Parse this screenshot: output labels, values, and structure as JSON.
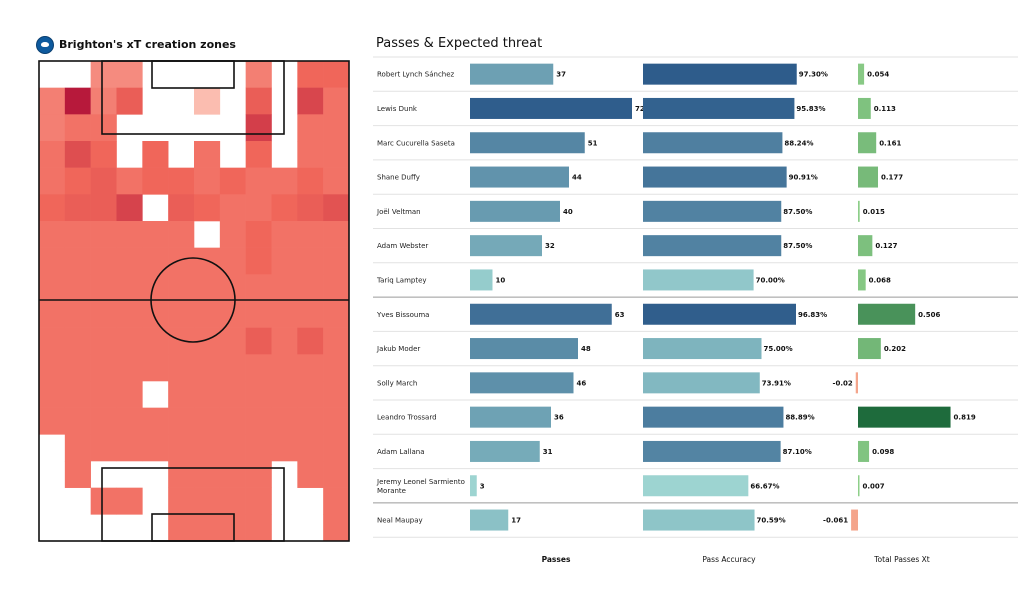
{
  "pitch_title": "Brighton's xT creation zones",
  "table_title": "Passes & Expected threat",
  "column_headers": {
    "passes": "Passes",
    "accuracy": "Pass Accuracy",
    "xt": "Total Passes Xt"
  },
  "colors": {
    "heat_max": "#b5163a",
    "heat_high": "#f0665a",
    "heat_low": "#fbbdb0",
    "pass_dark": "#2f5d8c",
    "pass_light": "#9fd7d3",
    "xt_dark": "#1e6b3c",
    "xt_light": "#8fd08a",
    "xt_negative": "#f4a58c"
  },
  "chart_data": [
    {
      "type": "heatmap",
      "title": "Brighton's xT creation zones",
      "grid": {
        "columns": 12,
        "rows": 18
      },
      "scale": {
        "min": 0,
        "max": 1
      },
      "values": [
        [
          0,
          0,
          0.35,
          0.35,
          0,
          0,
          0,
          0,
          0.4,
          0,
          0.5,
          0.5
        ],
        [
          0.4,
          0.98,
          0.4,
          0.55,
          0,
          0,
          0.15,
          0,
          0.55,
          0,
          0.7,
          0.45
        ],
        [
          0.4,
          0.45,
          0.45,
          0,
          0,
          0,
          0,
          0,
          0.75,
          0,
          0.45,
          0.45
        ],
        [
          0.45,
          0.65,
          0.5,
          0,
          0.5,
          0,
          0.45,
          0,
          0.5,
          0,
          0.45,
          0.45
        ],
        [
          0.45,
          0.5,
          0.55,
          0.45,
          0.5,
          0.5,
          0.45,
          0.5,
          0.45,
          0.45,
          0.5,
          0.45
        ],
        [
          0.5,
          0.55,
          0.55,
          0.72,
          0,
          0.55,
          0.5,
          0.45,
          0.45,
          0.5,
          0.55,
          0.62
        ],
        [
          0.45,
          0.45,
          0.45,
          0.45,
          0.45,
          0.45,
          0,
          0.45,
          0.5,
          0.45,
          0.45,
          0.45
        ],
        [
          0.45,
          0.45,
          0.45,
          0.45,
          0.45,
          0.45,
          0.45,
          0.45,
          0.5,
          0.45,
          0.45,
          0.45
        ],
        [
          0.45,
          0.45,
          0.45,
          0.45,
          0.45,
          0.45,
          0.45,
          0.45,
          0.45,
          0.45,
          0.45,
          0.45
        ],
        [
          0.45,
          0.45,
          0.45,
          0.45,
          0.45,
          0.45,
          0.45,
          0.45,
          0.45,
          0.45,
          0.45,
          0.45
        ],
        [
          0.45,
          0.45,
          0.45,
          0.45,
          0.45,
          0.45,
          0.45,
          0.45,
          0.55,
          0.45,
          0.55,
          0.45
        ],
        [
          0.45,
          0.45,
          0.45,
          0.45,
          0.45,
          0.45,
          0.45,
          0.45,
          0.45,
          0.45,
          0.45,
          0.45
        ],
        [
          0.45,
          0.45,
          0.45,
          0.45,
          0,
          0.45,
          0.45,
          0.45,
          0.45,
          0.45,
          0.45,
          0.45
        ],
        [
          0.45,
          0.45,
          0.45,
          0.45,
          0.45,
          0.45,
          0.45,
          0.45,
          0.45,
          0.45,
          0.45,
          0.45
        ],
        [
          0,
          0.45,
          0.45,
          0.45,
          0.45,
          0.45,
          0.45,
          0.45,
          0.45,
          0.45,
          0.45,
          0.45
        ],
        [
          0,
          0.45,
          0,
          0,
          0,
          0.45,
          0.45,
          0.45,
          0.45,
          0,
          0.45,
          0.45
        ],
        [
          0,
          0,
          0.45,
          0.45,
          0,
          0.45,
          0.45,
          0.45,
          0.45,
          0,
          0,
          0.45
        ],
        [
          0,
          0,
          0,
          0,
          0,
          0.45,
          0.45,
          0.45,
          0.45,
          0,
          0,
          0.45
        ]
      ]
    },
    {
      "type": "bar",
      "title": "Passes & Expected threat",
      "categories": [
        "Robert Lynch Sánchez",
        "Lewis Dunk",
        "Marc Cucurella Saseta",
        "Shane Duffy",
        "Joël Veltman",
        "Adam Webster",
        "Tariq Lamptey",
        "Yves Bissouma",
        "Jakub Moder",
        "Solly March",
        "Leandro Trossard",
        "Adam Lallana",
        "Jeremy Leonel Sarmiento Morante",
        "Neal Maupay"
      ],
      "group_breaks_after": [
        6,
        12
      ],
      "series": [
        {
          "name": "Passes",
          "values": [
            37,
            72,
            51,
            44,
            40,
            32,
            10,
            63,
            48,
            46,
            36,
            31,
            3,
            17
          ],
          "labels": [
            "37",
            "72",
            "51",
            "44",
            "40",
            "32",
            "10",
            "63",
            "48",
            "46",
            "36",
            "31",
            "3",
            "17"
          ]
        },
        {
          "name": "Pass Accuracy",
          "values": [
            97.3,
            95.83,
            88.24,
            90.91,
            87.5,
            87.5,
            70.0,
            96.83,
            75.0,
            73.91,
            88.89,
            87.1,
            66.67,
            70.59
          ],
          "labels": [
            "97.30%",
            "95.83%",
            "88.24%",
            "90.91%",
            "87.50%",
            "87.50%",
            "70.00%",
            "96.83%",
            "75.00%",
            "73.91%",
            "88.89%",
            "87.10%",
            "66.67%",
            "70.59%"
          ]
        },
        {
          "name": "Total Passes Xt",
          "values": [
            0.054,
            0.113,
            0.161,
            0.177,
            0.015,
            0.127,
            0.068,
            0.506,
            0.202,
            -0.02,
            0.819,
            0.098,
            0.007,
            -0.061
          ],
          "labels": [
            "0.054",
            "0.113",
            "0.161",
            "0.177",
            "0.015",
            "0.127",
            "0.068",
            "0.506",
            "0.202",
            "-0.02",
            "0.819",
            "0.098",
            "0.007",
            "-0.061"
          ]
        }
      ]
    }
  ]
}
